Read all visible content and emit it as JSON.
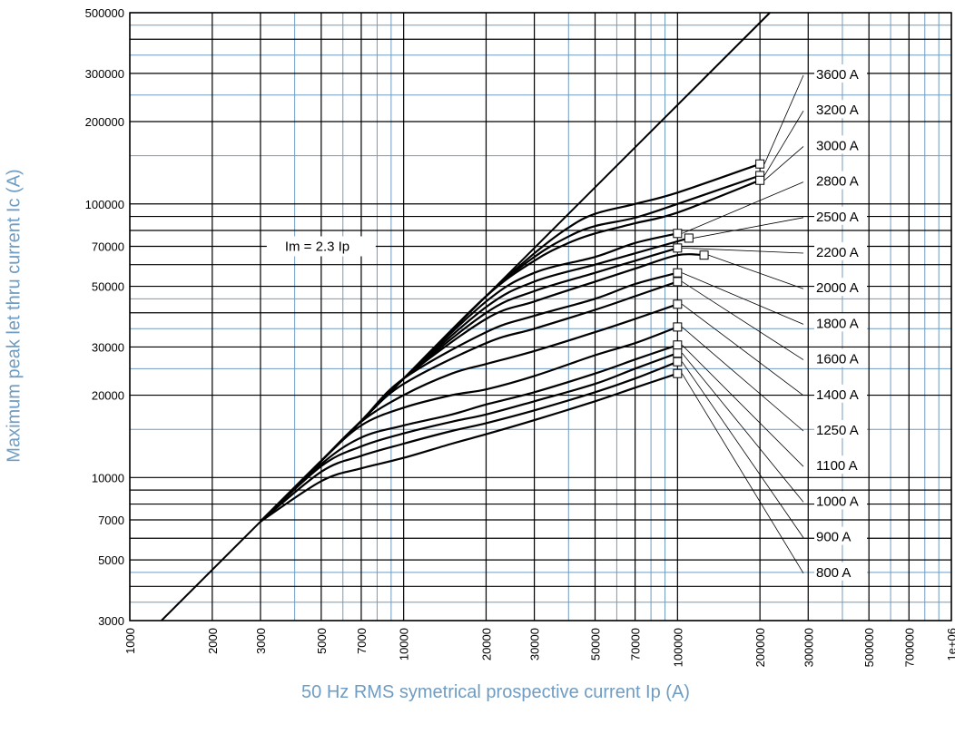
{
  "chart_data": {
    "type": "line",
    "title": "",
    "xlabel": "50 Hz RMS symetrical prospective current Ip (A)",
    "ylabel": "Maximum peak let thru current Ic (A)",
    "xscale": "log",
    "yscale": "log",
    "xlim": [
      1000,
      1000000
    ],
    "ylim": [
      3000,
      500000
    ],
    "grid": true,
    "x_ticks": [
      "1000",
      "2000",
      "3000",
      "5000",
      "7000",
      "10000",
      "20000",
      "30000",
      "50000",
      "70000",
      "100000",
      "200000",
      "300000",
      "500000",
      "700000",
      "1e+06"
    ],
    "y_ticks": [
      "3000",
      "5000",
      "7000",
      "10000",
      "20000",
      "30000",
      "50000",
      "70000",
      "100000",
      "200000",
      "300000",
      "500000"
    ],
    "reference_line": {
      "label": "Im = 2.3 Ip",
      "factor": 2.3
    },
    "series": [
      {
        "name": "3600 A",
        "x": [
          3000,
          5000,
          7000,
          10000,
          20000,
          30000,
          40000,
          50000,
          70000,
          100000,
          200000
        ],
        "y": [
          6900,
          11500,
          16100,
          23000,
          46000,
          66000,
          82000,
          92000,
          100000,
          110000,
          140000
        ]
      },
      {
        "name": "3200 A",
        "x": [
          3000,
          5000,
          7000,
          10000,
          20000,
          30000,
          40000,
          50000,
          70000,
          100000,
          200000
        ],
        "y": [
          6900,
          11500,
          16100,
          23000,
          46000,
          64000,
          76000,
          83000,
          89000,
          100000,
          127000
        ]
      },
      {
        "name": "3000 A",
        "x": [
          3000,
          5000,
          7000,
          10000,
          20000,
          30000,
          40000,
          50000,
          70000,
          100000,
          200000
        ],
        "y": [
          6900,
          11500,
          16100,
          23000,
          46000,
          62000,
          72000,
          78000,
          85000,
          93000,
          122000
        ]
      },
      {
        "name": "2800 A",
        "x": [
          3000,
          5000,
          7000,
          10000,
          20000,
          30000,
          50000,
          70000,
          100000
        ],
        "y": [
          6900,
          11500,
          16100,
          23000,
          44000,
          56000,
          64000,
          72000,
          78000
        ]
      },
      {
        "name": "2500 A",
        "x": [
          3000,
          5000,
          7000,
          10000,
          20000,
          30000,
          50000,
          70000,
          100000,
          110000
        ],
        "y": [
          6900,
          11500,
          16100,
          23000,
          42000,
          52000,
          60000,
          66000,
          73000,
          75000
        ]
      },
      {
        "name": "2200 A",
        "x": [
          3000,
          5000,
          7000,
          10000,
          20000,
          30000,
          50000,
          70000,
          100000
        ],
        "y": [
          6900,
          11500,
          16100,
          23000,
          40000,
          48000,
          56000,
          62000,
          69000
        ]
      },
      {
        "name": "2000 A",
        "x": [
          3000,
          5000,
          7000,
          10000,
          20000,
          30000,
          50000,
          70000,
          100000,
          125000
        ],
        "y": [
          6900,
          11500,
          16100,
          23000,
          38000,
          44000,
          52000,
          58000,
          65000,
          65000
        ]
      },
      {
        "name": "1800 A",
        "x": [
          3000,
          5000,
          7000,
          10000,
          20000,
          30000,
          50000,
          70000,
          100000
        ],
        "y": [
          6900,
          11500,
          16100,
          23000,
          34000,
          39000,
          45000,
          51000,
          56000
        ]
      },
      {
        "name": "1600 A",
        "x": [
          3000,
          5000,
          7000,
          10000,
          20000,
          30000,
          50000,
          70000,
          100000
        ],
        "y": [
          6900,
          11500,
          16100,
          22000,
          31000,
          35000,
          41000,
          46000,
          52000
        ]
      },
      {
        "name": "1400 A",
        "x": [
          3000,
          5000,
          7000,
          10000,
          15000,
          20000,
          30000,
          50000,
          70000,
          100000
        ],
        "y": [
          6900,
          11500,
          16000,
          20000,
          24000,
          26000,
          29000,
          34000,
          38000,
          43000
        ]
      },
      {
        "name": "1250 A",
        "x": [
          3000,
          5000,
          7000,
          10000,
          15000,
          20000,
          30000,
          50000,
          70000,
          100000
        ],
        "y": [
          6900,
          11500,
          15500,
          18000,
          20000,
          21000,
          23500,
          28000,
          31000,
          35500
        ]
      },
      {
        "name": "1100 A",
        "x": [
          3000,
          5000,
          7000,
          10000,
          15000,
          20000,
          30000,
          50000,
          70000,
          100000
        ],
        "y": [
          6900,
          11200,
          14000,
          15500,
          17000,
          18500,
          20500,
          24000,
          27000,
          30500
        ]
      },
      {
        "name": "1000 A",
        "x": [
          3000,
          5000,
          7000,
          10000,
          15000,
          20000,
          30000,
          50000,
          70000,
          100000
        ],
        "y": [
          6900,
          11000,
          13000,
          14500,
          16000,
          17000,
          19000,
          22000,
          25000,
          28500
        ]
      },
      {
        "name": "900 A",
        "x": [
          3000,
          5000,
          7000,
          10000,
          15000,
          20000,
          30000,
          50000,
          70000,
          100000
        ],
        "y": [
          6900,
          10500,
          12000,
          13300,
          14800,
          15800,
          17600,
          20500,
          23000,
          26500
        ]
      },
      {
        "name": "800 A",
        "x": [
          3000,
          5000,
          7000,
          10000,
          15000,
          20000,
          30000,
          50000,
          70000,
          100000
        ],
        "y": [
          6900,
          9700,
          10800,
          11800,
          13300,
          14400,
          16200,
          19000,
          21300,
          24000
        ]
      }
    ],
    "markers": [
      {
        "series": "3600 A",
        "x": 200000,
        "y": 140000
      },
      {
        "series": "3200 A",
        "x": 200000,
        "y": 127000
      },
      {
        "series": "3000 A",
        "x": 200000,
        "y": 122000
      },
      {
        "series": "2800 A",
        "x": 100000,
        "y": 78000
      },
      {
        "series": "2500 A",
        "x": 110000,
        "y": 75000
      },
      {
        "series": "2200 A",
        "x": 100000,
        "y": 69000
      },
      {
        "series": "2000 A",
        "x": 125000,
        "y": 65000
      },
      {
        "series": "1800 A",
        "x": 100000,
        "y": 56000
      },
      {
        "series": "1600 A",
        "x": 100000,
        "y": 52000
      },
      {
        "series": "1400 A",
        "x": 100000,
        "y": 43000
      },
      {
        "series": "1250 A",
        "x": 100000,
        "y": 35500
      },
      {
        "series": "1100 A",
        "x": 100000,
        "y": 30500
      },
      {
        "series": "1000 A",
        "x": 100000,
        "y": 28500
      },
      {
        "series": "900 A",
        "x": 100000,
        "y": 26500
      },
      {
        "series": "800 A",
        "x": 100000,
        "y": 24000
      }
    ],
    "legend_labels": [
      "3600 A",
      "3200 A",
      "3000 A",
      "2800 A",
      "2500 A",
      "2200 A",
      "2000 A",
      "1800 A",
      "1600 A",
      "1400 A",
      "1250 A",
      "1100 A",
      "1000 A",
      "900 A",
      "800 A"
    ],
    "colors": {
      "curve": "#000000",
      "major_grid": "#000000",
      "minor_grid": "#6f9cc2",
      "axis_title": "#6f9cc2"
    }
  }
}
